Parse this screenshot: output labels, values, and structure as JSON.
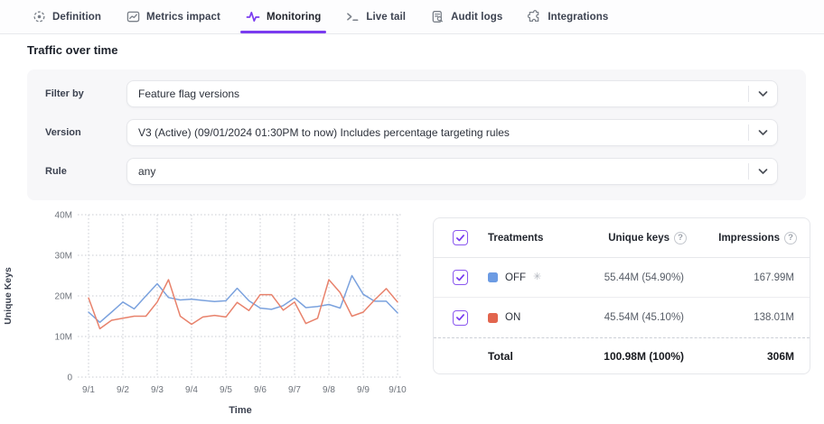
{
  "tabs": [
    {
      "label": "Definition",
      "icon": "target-icon",
      "active": false
    },
    {
      "label": "Metrics impact",
      "icon": "metrics-chart-icon",
      "active": false
    },
    {
      "label": "Monitoring",
      "icon": "pulse-icon",
      "active": true
    },
    {
      "label": "Live tail",
      "icon": "terminal-icon",
      "active": false
    },
    {
      "label": "Audit logs",
      "icon": "document-search-icon",
      "active": false
    },
    {
      "label": "Integrations",
      "icon": "puzzle-icon",
      "active": false
    }
  ],
  "section_title": "Traffic over time",
  "filters": {
    "rows": [
      {
        "label": "Filter by",
        "value": "Feature flag versions"
      },
      {
        "label": "Version",
        "value": "V3 (Active) (09/01/2024 01:30PM to now) Includes percentage targeting rules"
      },
      {
        "label": "Rule",
        "value": "any"
      }
    ]
  },
  "chart_data": {
    "type": "line",
    "xlabel": "Time",
    "ylabel": "Unique Keys",
    "x_tick_labels": [
      "9/1",
      "9/2",
      "9/3",
      "9/4",
      "9/5",
      "9/6",
      "9/7",
      "9/8",
      "9/9",
      "9/10"
    ],
    "y_tick_labels": [
      "0",
      "10M",
      "20M",
      "30M",
      "40M"
    ],
    "y_tick_values_millions": [
      0,
      10,
      20,
      30,
      40
    ],
    "ylim_millions": [
      0,
      40
    ],
    "xlim_days": [
      1,
      10
    ],
    "grid": "dotted",
    "legend_position": "side-table",
    "x_days": [
      1,
      1.33,
      1.67,
      2,
      2.33,
      2.67,
      3,
      3.33,
      3.67,
      4,
      4.33,
      4.67,
      5,
      5.33,
      5.67,
      6,
      6.33,
      6.67,
      7,
      7.33,
      7.67,
      8,
      8.33,
      8.67,
      9,
      9.33,
      9.67,
      10
    ],
    "series": [
      {
        "name": "OFF",
        "color": "#7BA2DE",
        "values_millions": [
          16,
          13.5,
          16,
          18.5,
          16.8,
          20,
          23,
          19.6,
          19,
          19.2,
          18.9,
          18.6,
          18.8,
          21.9,
          18.8,
          17,
          16.7,
          17.6,
          19.5,
          17.1,
          17.4,
          17.9,
          17,
          25,
          20.4,
          18.7,
          18.7,
          15.8
        ]
      },
      {
        "name": "ON",
        "color": "#E8826C",
        "values_millions": [
          19.5,
          11.9,
          14,
          14.5,
          15,
          15,
          18.5,
          24,
          15,
          13,
          14.8,
          15.2,
          14.8,
          18.4,
          16.4,
          20.3,
          20.3,
          16.5,
          18.5,
          13.2,
          14.5,
          24,
          20.8,
          15,
          16,
          19,
          21.8,
          18.5
        ]
      }
    ]
  },
  "treatments_table": {
    "headers": {
      "treatments": "Treatments",
      "unique_keys": "Unique keys",
      "impressions": "Impressions"
    },
    "rows": [
      {
        "name": "OFF",
        "color": "#6C9BE3",
        "default_marker": "✳",
        "unique_keys": "55.44M (54.90%)",
        "impressions": "167.99M",
        "checked": true
      },
      {
        "name": "ON",
        "color": "#E2654E",
        "default_marker": "",
        "unique_keys": "45.54M (45.10%)",
        "impressions": "138.01M",
        "checked": true
      }
    ],
    "total": {
      "label": "Total",
      "unique_keys": "100.98M (100%)",
      "impressions": "306M"
    }
  },
  "icons": {
    "help": "?",
    "checkmark": "✓"
  },
  "colors": {
    "accent_purple": "#7A3BF0",
    "off_blue": "#6C9BE3",
    "on_red": "#E2654E",
    "grid": "#c9ccd3",
    "panel_bg": "#f7f7f9"
  }
}
